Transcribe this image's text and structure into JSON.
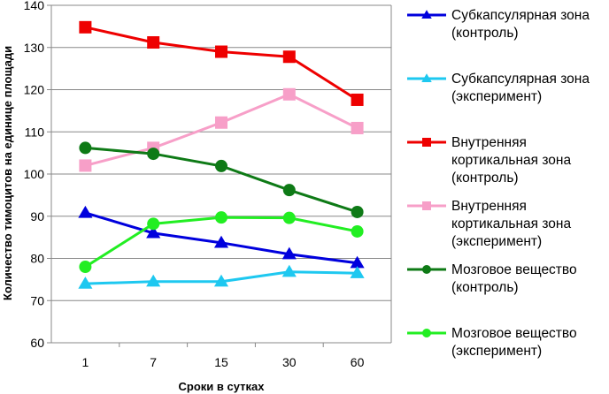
{
  "chart_data": {
    "type": "line",
    "title": "",
    "xlabel": "Сроки в сутках",
    "ylabel": "Количество тимоцитов на единице площади",
    "categories": [
      "1",
      "7",
      "15",
      "30",
      "60"
    ],
    "ylim": [
      60,
      140
    ],
    "yticks": [
      60,
      70,
      80,
      90,
      100,
      110,
      120,
      130,
      140
    ],
    "grid": "horizontal",
    "legend_position": "right",
    "series": [
      {
        "name": "Субкапсулярная зона (контроль)",
        "label_lines": "Субкапсулярная зона\n(контроль)",
        "color": "#0000DD",
        "marker": "triangle",
        "values": [
          90.8,
          86.0,
          83.7,
          81.0,
          78.9
        ]
      },
      {
        "name": "Субкапсулярная зона (эксперимент)",
        "label_lines": "Субкапсулярная зона\n(эксперимент)",
        "color": "#1EC8F0",
        "marker": "triangle",
        "values": [
          74.0,
          74.5,
          74.5,
          76.8,
          76.5
        ]
      },
      {
        "name": "Внутренняя кортикальная зона (контроль)",
        "label_lines": "Внутренняя\nкортикальная зона\n(контроль)",
        "color": "#EE0000",
        "marker": "square",
        "values": [
          134.8,
          131.2,
          129.0,
          127.8,
          117.6
        ]
      },
      {
        "name": "Внутренняя кортикальная зона (эксперимент)",
        "label_lines": "Внутренняя\nкортикальная зона\n(эксперимент)",
        "color": "#F79FC8",
        "marker": "square",
        "values": [
          102.0,
          106.2,
          112.2,
          118.9,
          110.9
        ]
      },
      {
        "name": "Мозговое вещество (контроль)",
        "label_lines": "Мозговое вещество\n(контроль)",
        "color": "#0E7A16",
        "marker": "circle",
        "values": [
          106.2,
          104.8,
          101.9,
          96.2,
          91.0
        ]
      },
      {
        "name": "Мозговое вещество (эксперимент)",
        "label_lines": "Мозговое вещество\n(эксперимент)",
        "color": "#22EE22",
        "marker": "circle",
        "values": [
          78.0,
          88.2,
          89.7,
          89.6,
          86.4
        ]
      }
    ]
  }
}
